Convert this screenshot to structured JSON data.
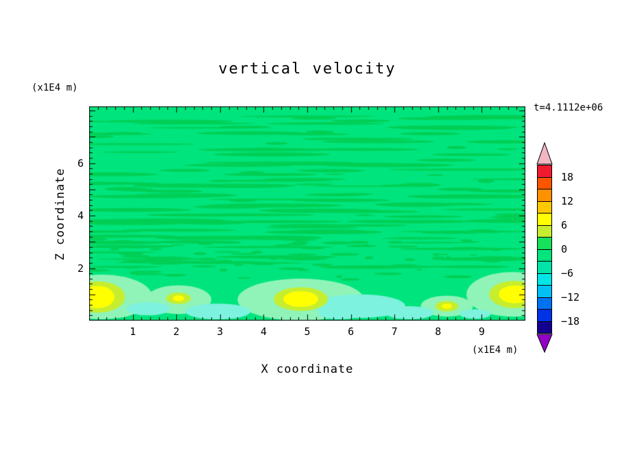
{
  "page": {
    "background": "#ffffff",
    "text_color": "#000000"
  },
  "title": "vertical velocity",
  "timestamp": "t=4.1112e+06",
  "axes": {
    "x_label": "X coordinate",
    "x_unit": "(x1E4 m)",
    "y_label": "Z coordinate",
    "y_unit": "(x1E4 m)",
    "x_tick_labels": [
      "1",
      "2",
      "3",
      "4",
      "5",
      "6",
      "7",
      "8",
      "9"
    ],
    "y_tick_labels": [
      "2",
      "4",
      "6"
    ]
  },
  "colorbar": {
    "labels": [
      "18",
      "12",
      "6",
      "0",
      "−6",
      "−12",
      "−18"
    ],
    "label_values": [
      18,
      12,
      6,
      0,
      -6,
      -12,
      -18
    ],
    "segment_colors": [
      "#f01a2e",
      "#ff5500",
      "#ff9100",
      "#ffc800",
      "#ffff00",
      "#c6ee2e",
      "#17e05a",
      "#00e47d",
      "#00e4a8",
      "#00e6e6",
      "#00c0f5",
      "#0072f5",
      "#0032e6",
      "#140090"
    ],
    "arrow_top_color": "#f2b6c2",
    "arrow_bottom_color": "#9400c8"
  },
  "chart_data": {
    "type": "contour",
    "title": "vertical velocity",
    "timestamp": "t=4.1112e+06",
    "xlabel": "X coordinate",
    "ylabel": "Z coordinate",
    "units": "(x1E4 m)",
    "x_range": [
      0,
      10
    ],
    "z_range": [
      0,
      8.16
    ],
    "x_tick_values": [
      1,
      2,
      3,
      4,
      5,
      6,
      7,
      8,
      9
    ],
    "z_tick_values": [
      2,
      4,
      6
    ],
    "colorbar_levels": {
      "min": -21,
      "max": 21,
      "step": 3
    },
    "approx_field_range": [
      -6,
      9
    ],
    "colors": {
      "base": "#00e47d",
      "streak": "#00cf55",
      "halo": "#90f4b8",
      "cyan": "#7df2de",
      "rim": "#c6ee2e",
      "core": "#ffff00"
    },
    "streaks": {
      "seed": 20240611,
      "count": 150,
      "rows": 30,
      "z_min": 2.0,
      "z_max": 7.95,
      "len_min": 0.35,
      "len_max": 3.2,
      "th_min": 0.06,
      "th_max": 0.17
    },
    "dashes": {
      "seed": 987123,
      "count": 70,
      "z_min": 1.55,
      "z_max": 3.1,
      "len_min": 0.12,
      "len_max": 0.75,
      "th_min": 0.05,
      "th_max": 0.12
    },
    "halos": [
      {
        "x": 0.3,
        "z": 0.9,
        "rx": 1.15,
        "rz": 0.85
      },
      {
        "x": 2.05,
        "z": 0.8,
        "rx": 0.75,
        "rz": 0.55
      },
      {
        "x": 4.85,
        "z": 0.8,
        "rx": 1.45,
        "rz": 0.8
      },
      {
        "x": 8.2,
        "z": 0.55,
        "rx": 0.6,
        "rz": 0.4
      },
      {
        "x": 9.7,
        "z": 1.0,
        "rx": 1.05,
        "rz": 0.85
      }
    ],
    "cyan_patches": [
      {
        "x": 1.35,
        "z": 0.45,
        "rx": 0.5,
        "rz": 0.25
      },
      {
        "x": 2.95,
        "z": 0.35,
        "rx": 0.75,
        "rz": 0.3
      },
      {
        "x": 6.2,
        "z": 0.55,
        "rx": 1.05,
        "rz": 0.45
      },
      {
        "x": 5.75,
        "z": 0.25,
        "rx": 0.5,
        "rz": 0.2
      },
      {
        "x": 7.35,
        "z": 0.3,
        "rx": 0.55,
        "rz": 0.25
      },
      {
        "x": 8.85,
        "z": 0.25,
        "rx": 0.35,
        "rz": 0.18
      }
    ],
    "blobs": [
      {
        "x": 0.2,
        "z": 0.9,
        "rim_rx": 0.62,
        "rim_rz": 0.6,
        "core_rx": 0.38,
        "core_rz": 0.42
      },
      {
        "x": 2.05,
        "z": 0.85,
        "rim_rx": 0.28,
        "rim_rz": 0.22,
        "core_rx": 0.13,
        "core_rz": 0.11
      },
      {
        "x": 4.85,
        "z": 0.82,
        "rim_rx": 0.62,
        "rim_rz": 0.45,
        "core_rx": 0.4,
        "core_rz": 0.3
      },
      {
        "x": 8.2,
        "z": 0.55,
        "rim_rx": 0.26,
        "rim_rz": 0.2,
        "core_rx": 0.12,
        "core_rz": 0.1
      },
      {
        "x": 9.75,
        "z": 1.0,
        "rim_rx": 0.58,
        "rim_rz": 0.52,
        "core_rx": 0.36,
        "core_rz": 0.34
      }
    ]
  }
}
